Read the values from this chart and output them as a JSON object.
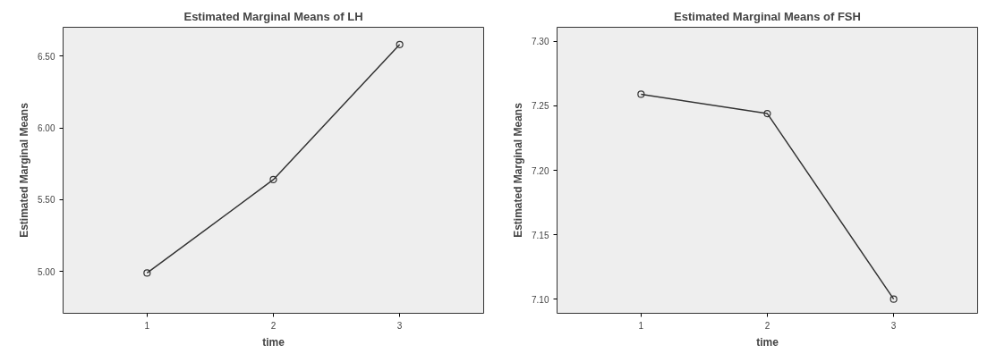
{
  "chart_data": [
    {
      "type": "line",
      "title": "Estimated Marginal Means of LH",
      "xlabel": "time",
      "ylabel": "Estimated Marginal Means",
      "x": [
        1,
        2,
        3
      ],
      "series": [
        {
          "color": "#333333",
          "values": [
            4.99,
            5.64,
            6.58
          ]
        }
      ],
      "xlim": [
        0.335,
        3.665
      ],
      "xticks": [
        1,
        2,
        3
      ],
      "ylim": [
        4.71,
        6.7
      ],
      "yticks": [
        {
          "value": 5.0,
          "label": "5.00"
        },
        {
          "value": 5.5,
          "label": "5.50"
        },
        {
          "value": 6.0,
          "label": "6.00"
        },
        {
          "value": 6.5,
          "label": "6.50"
        }
      ],
      "marker": "circle",
      "line_style": "solid",
      "grid": false
    },
    {
      "type": "line",
      "title": "Estimated Marginal Means of FSH",
      "xlabel": "time",
      "ylabel": "Estimated Marginal Means",
      "x": [
        1,
        2,
        3
      ],
      "series": [
        {
          "color": "#333333",
          "values": [
            7.259,
            7.244,
            7.1
          ]
        }
      ],
      "xlim": [
        0.335,
        3.665
      ],
      "xticks": [
        1,
        2,
        3
      ],
      "ylim": [
        7.089,
        7.311
      ],
      "yticks": [
        {
          "value": 7.1,
          "label": "7.10"
        },
        {
          "value": 7.15,
          "label": "7.15"
        },
        {
          "value": 7.2,
          "label": "7.20"
        },
        {
          "value": 7.25,
          "label": "7.25"
        },
        {
          "value": 7.3,
          "label": "7.30"
        }
      ],
      "marker": "circle",
      "line_style": "solid",
      "grid": false
    }
  ]
}
